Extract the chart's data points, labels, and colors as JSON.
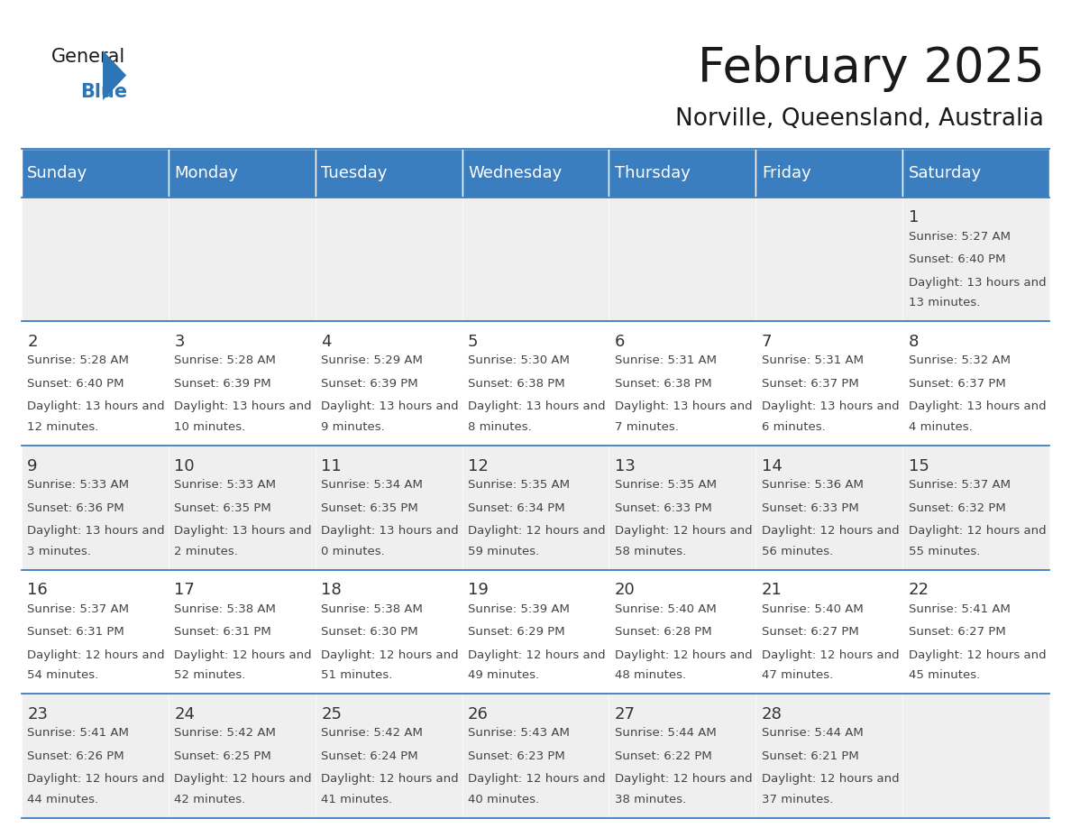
{
  "title": "February 2025",
  "subtitle": "Norville, Queensland, Australia",
  "header_bg": "#3a7ebf",
  "header_text": "#ffffff",
  "odd_row_bg": "#efefef",
  "even_row_bg": "#ffffff",
  "border_color": "#3a7ebf",
  "day_headers": [
    "Sunday",
    "Monday",
    "Tuesday",
    "Wednesday",
    "Thursday",
    "Friday",
    "Saturday"
  ],
  "days": [
    {
      "day": 1,
      "col": 6,
      "row": 0,
      "sunrise": "5:27 AM",
      "sunset": "6:40 PM",
      "daylight": "13 hours and 13 minutes."
    },
    {
      "day": 2,
      "col": 0,
      "row": 1,
      "sunrise": "5:28 AM",
      "sunset": "6:40 PM",
      "daylight": "13 hours and 12 minutes."
    },
    {
      "day": 3,
      "col": 1,
      "row": 1,
      "sunrise": "5:28 AM",
      "sunset": "6:39 PM",
      "daylight": "13 hours and 10 minutes."
    },
    {
      "day": 4,
      "col": 2,
      "row": 1,
      "sunrise": "5:29 AM",
      "sunset": "6:39 PM",
      "daylight": "13 hours and 9 minutes."
    },
    {
      "day": 5,
      "col": 3,
      "row": 1,
      "sunrise": "5:30 AM",
      "sunset": "6:38 PM",
      "daylight": "13 hours and 8 minutes."
    },
    {
      "day": 6,
      "col": 4,
      "row": 1,
      "sunrise": "5:31 AM",
      "sunset": "6:38 PM",
      "daylight": "13 hours and 7 minutes."
    },
    {
      "day": 7,
      "col": 5,
      "row": 1,
      "sunrise": "5:31 AM",
      "sunset": "6:37 PM",
      "daylight": "13 hours and 6 minutes."
    },
    {
      "day": 8,
      "col": 6,
      "row": 1,
      "sunrise": "5:32 AM",
      "sunset": "6:37 PM",
      "daylight": "13 hours and 4 minutes."
    },
    {
      "day": 9,
      "col": 0,
      "row": 2,
      "sunrise": "5:33 AM",
      "sunset": "6:36 PM",
      "daylight": "13 hours and 3 minutes."
    },
    {
      "day": 10,
      "col": 1,
      "row": 2,
      "sunrise": "5:33 AM",
      "sunset": "6:35 PM",
      "daylight": "13 hours and 2 minutes."
    },
    {
      "day": 11,
      "col": 2,
      "row": 2,
      "sunrise": "5:34 AM",
      "sunset": "6:35 PM",
      "daylight": "13 hours and 0 minutes."
    },
    {
      "day": 12,
      "col": 3,
      "row": 2,
      "sunrise": "5:35 AM",
      "sunset": "6:34 PM",
      "daylight": "12 hours and 59 minutes."
    },
    {
      "day": 13,
      "col": 4,
      "row": 2,
      "sunrise": "5:35 AM",
      "sunset": "6:33 PM",
      "daylight": "12 hours and 58 minutes."
    },
    {
      "day": 14,
      "col": 5,
      "row": 2,
      "sunrise": "5:36 AM",
      "sunset": "6:33 PM",
      "daylight": "12 hours and 56 minutes."
    },
    {
      "day": 15,
      "col": 6,
      "row": 2,
      "sunrise": "5:37 AM",
      "sunset": "6:32 PM",
      "daylight": "12 hours and 55 minutes."
    },
    {
      "day": 16,
      "col": 0,
      "row": 3,
      "sunrise": "5:37 AM",
      "sunset": "6:31 PM",
      "daylight": "12 hours and 54 minutes."
    },
    {
      "day": 17,
      "col": 1,
      "row": 3,
      "sunrise": "5:38 AM",
      "sunset": "6:31 PM",
      "daylight": "12 hours and 52 minutes."
    },
    {
      "day": 18,
      "col": 2,
      "row": 3,
      "sunrise": "5:38 AM",
      "sunset": "6:30 PM",
      "daylight": "12 hours and 51 minutes."
    },
    {
      "day": 19,
      "col": 3,
      "row": 3,
      "sunrise": "5:39 AM",
      "sunset": "6:29 PM",
      "daylight": "12 hours and 49 minutes."
    },
    {
      "day": 20,
      "col": 4,
      "row": 3,
      "sunrise": "5:40 AM",
      "sunset": "6:28 PM",
      "daylight": "12 hours and 48 minutes."
    },
    {
      "day": 21,
      "col": 5,
      "row": 3,
      "sunrise": "5:40 AM",
      "sunset": "6:27 PM",
      "daylight": "12 hours and 47 minutes."
    },
    {
      "day": 22,
      "col": 6,
      "row": 3,
      "sunrise": "5:41 AM",
      "sunset": "6:27 PM",
      "daylight": "12 hours and 45 minutes."
    },
    {
      "day": 23,
      "col": 0,
      "row": 4,
      "sunrise": "5:41 AM",
      "sunset": "6:26 PM",
      "daylight": "12 hours and 44 minutes."
    },
    {
      "day": 24,
      "col": 1,
      "row": 4,
      "sunrise": "5:42 AM",
      "sunset": "6:25 PM",
      "daylight": "12 hours and 42 minutes."
    },
    {
      "day": 25,
      "col": 2,
      "row": 4,
      "sunrise": "5:42 AM",
      "sunset": "6:24 PM",
      "daylight": "12 hours and 41 minutes."
    },
    {
      "day": 26,
      "col": 3,
      "row": 4,
      "sunrise": "5:43 AM",
      "sunset": "6:23 PM",
      "daylight": "12 hours and 40 minutes."
    },
    {
      "day": 27,
      "col": 4,
      "row": 4,
      "sunrise": "5:44 AM",
      "sunset": "6:22 PM",
      "daylight": "12 hours and 38 minutes."
    },
    {
      "day": 28,
      "col": 5,
      "row": 4,
      "sunrise": "5:44 AM",
      "sunset": "6:21 PM",
      "daylight": "12 hours and 37 minutes."
    }
  ],
  "num_rows": 5,
  "logo_color_general": "#1a1a1a",
  "logo_color_blue": "#2e75b6",
  "logo_triangle_color": "#2e75b6",
  "title_fontsize": 38,
  "subtitle_fontsize": 19,
  "header_fontsize": 13,
  "day_num_fontsize": 13,
  "cell_text_fontsize": 9.5
}
